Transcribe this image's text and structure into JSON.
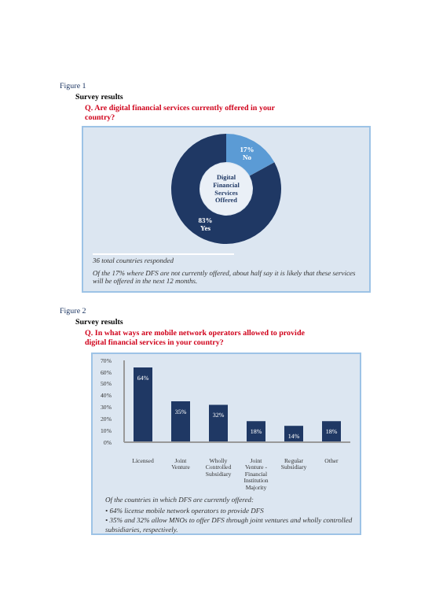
{
  "chart_data": [
    {
      "type": "donut",
      "title": "Survey results",
      "subtitle": "Q. Are digital financial services currently offered in your country?",
      "categories": [
        "No",
        "Yes"
      ],
      "values": [
        17,
        83
      ],
      "colors": [
        "#5b9bd5",
        "#1f3864"
      ],
      "value_labels": [
        "17%",
        "83%"
      ],
      "annotations": [
        "Figure 1",
        "Digital Financial Services Offered",
        "36 total countries responded",
        "Of the 17% where DFS are not currently offered, about half say it is likely that these services will be offered in the next 12 months."
      ]
    },
    {
      "type": "bar",
      "title": "Survey results",
      "subtitle": "Q. In what ways are mobile network operators allowed to provide digital financial services in your country?",
      "categories": [
        "Licensed",
        "Joint Venture",
        "Wholly Controlled Subsidiary",
        "Joint Venture - Financial Institution Majority",
        "Regular Subsidiary",
        "Other"
      ],
      "values": [
        64,
        35,
        32,
        18,
        14,
        18
      ],
      "color": "#1f3864",
      "value_labels": [
        "64%",
        "35%",
        "32%",
        "18%",
        "14%",
        "18%"
      ],
      "ylim": [
        0,
        70
      ],
      "yticks": [
        {
          "value": 0,
          "label": "0%"
        },
        {
          "value": 10,
          "label": "10%"
        },
        {
          "value": 20,
          "label": "20%"
        },
        {
          "value": 30,
          "label": "30%"
        },
        {
          "value": 40,
          "label": "40%"
        },
        {
          "value": 50,
          "label": "50%"
        },
        {
          "value": 60,
          "label": "60%"
        },
        {
          "value": 70,
          "label": "70%"
        }
      ],
      "annotations": [
        "Figure 2",
        "Of the countries in which DFS are currently offered:",
        "• 64% license mobile network operators to provide DFS",
        "• 35% and 32% allow MNOs to offer DFS through joint ventures and wholly controlled subsidiaries, respectively."
      ]
    }
  ]
}
